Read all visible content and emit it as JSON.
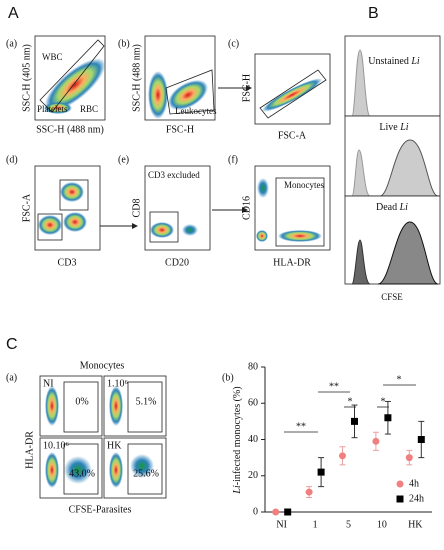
{
  "panels": {
    "A": "A",
    "B": "B",
    "C": "C"
  },
  "A": {
    "a": {
      "label": "(a)",
      "y_label": "SSC-H (405 nm)",
      "x_label": "SSC-H (488 nm)",
      "gates": [
        "WBC",
        "Platelets",
        "RBC"
      ]
    },
    "b": {
      "label": "(b)",
      "y_label": "SSC-H (488 nm)",
      "x_label": "FSC-H",
      "gate": "Leukocytes"
    },
    "c": {
      "label": "(c)",
      "y_label": "FSC-H",
      "x_label": "FSC-A"
    },
    "d": {
      "label": "(d)",
      "y_label": "FSC-A",
      "x_label": "CD3"
    },
    "e": {
      "label": "(e)",
      "y_label": "CD8",
      "x_label": "CD20",
      "note": "CD3 excluded"
    },
    "f": {
      "label": "(f)",
      "y_label": "CD16",
      "x_label": "HLA-DR",
      "gate": "Monocytes"
    }
  },
  "B": {
    "histograms": [
      {
        "name": "Unstained",
        "species": "Li"
      },
      {
        "name": "Live",
        "species": "Li"
      },
      {
        "name": "Dead",
        "species": "Li"
      }
    ],
    "x_label": "CFSE"
  },
  "C": {
    "a": {
      "label": "(a)",
      "title": "Monocytes",
      "y_label": "HLA-DR",
      "x_label": "CFSE-Parasites",
      "plots": [
        {
          "name": "NI",
          "percent": "0%"
        },
        {
          "name": "1.10⁶",
          "percent": "5.1%"
        },
        {
          "name": "10.10⁶",
          "percent": "43.0%"
        },
        {
          "name": "HK",
          "percent": "25.6%"
        }
      ]
    },
    "b": {
      "label": "(b)"
    }
  },
  "chart_data": {
    "type": "scatter",
    "y_label_italic": "Li",
    "y_label": "-infected monocytes (%)",
    "categories": [
      "NI",
      "1",
      "5",
      "10",
      "HK"
    ],
    "series": [
      {
        "name": "4h",
        "color": "#f08080",
        "marker": "circle",
        "values": [
          0,
          11,
          31,
          39,
          30
        ],
        "errors": [
          0,
          3,
          5,
          5,
          4
        ]
      },
      {
        "name": "24h",
        "color": "#000000",
        "marker": "square",
        "values": [
          0,
          22,
          50,
          52,
          40
        ],
        "errors": [
          0,
          8,
          9,
          9,
          10
        ]
      }
    ],
    "ylim": [
      0,
      80
    ],
    "yticks": [
      0,
      20,
      40,
      60,
      80
    ],
    "annotations": [
      "**",
      "**",
      "*",
      "*",
      "*"
    ],
    "legend": "lower right"
  }
}
